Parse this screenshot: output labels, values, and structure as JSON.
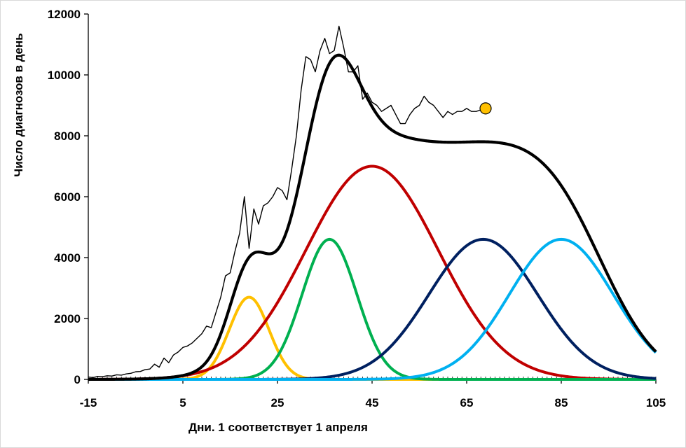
{
  "chart_data": {
    "type": "line",
    "title": "",
    "xlabel": "Дни. 1 соответствует 1 апреля",
    "ylabel": "Число диагнозов в день",
    "xlim": [
      -15,
      105
    ],
    "ylim": [
      0,
      12000
    ],
    "x_ticks": [
      -15,
      5,
      25,
      45,
      65,
      85,
      105
    ],
    "y_ticks": [
      0,
      2000,
      4000,
      6000,
      8000,
      10000,
      12000
    ],
    "gaussians": [
      {
        "name": "wave-yellow",
        "color": "#ffc000",
        "amplitude": 2700,
        "mean": 19,
        "sigma": 4.2
      },
      {
        "name": "wave-red",
        "color": "#c00000",
        "amplitude": 7000,
        "mean": 45,
        "sigma": 14
      },
      {
        "name": "wave-green",
        "color": "#00b050",
        "amplitude": 4600,
        "mean": 36,
        "sigma": 5.8
      },
      {
        "name": "wave-navy",
        "color": "#002060",
        "amplitude": 4600,
        "mean": 68.5,
        "sigma": 11.5
      },
      {
        "name": "wave-cyan",
        "color": "#00b0f0",
        "amplitude": 4600,
        "mean": 85,
        "sigma": 11
      }
    ],
    "sum_series": {
      "name": "model-sum",
      "color": "#000000"
    },
    "observed_series": {
      "name": "observed-daily",
      "color": "#000000",
      "x": [
        -15,
        -14,
        -13,
        -12,
        -11,
        -10,
        -9,
        -8,
        -7,
        -6,
        -5,
        -4,
        -3,
        -2,
        -1,
        0,
        1,
        2,
        3,
        4,
        5,
        6,
        7,
        8,
        9,
        10,
        11,
        12,
        13,
        14,
        15,
        16,
        17,
        18,
        19,
        20,
        21,
        22,
        23,
        24,
        25,
        26,
        27,
        28,
        29,
        30,
        31,
        32,
        33,
        34,
        35,
        36,
        37,
        38,
        39,
        40,
        41,
        42,
        43,
        44,
        45,
        46,
        47,
        48,
        49,
        50,
        51,
        52,
        53,
        54,
        55,
        56,
        57,
        58,
        59,
        60,
        61,
        62,
        63,
        64,
        65,
        66,
        67,
        68,
        69
      ],
      "y": [
        80,
        60,
        100,
        90,
        120,
        110,
        150,
        140,
        180,
        200,
        250,
        260,
        320,
        340,
        500,
        400,
        700,
        550,
        800,
        900,
        1050,
        1100,
        1200,
        1350,
        1500,
        1750,
        1700,
        2200,
        2700,
        3400,
        3500,
        4200,
        4800,
        6000,
        4300,
        5600,
        5100,
        5700,
        5800,
        6000,
        6300,
        6200,
        5900,
        6900,
        8000,
        9500,
        10600,
        10500,
        10100,
        10800,
        11200,
        10700,
        10800,
        11600,
        10900,
        10100,
        10100,
        10300,
        9200,
        9400,
        9100,
        9000,
        8800,
        8900,
        9000,
        8700,
        8400,
        8400,
        8700,
        8900,
        9000,
        9300,
        9100,
        9000,
        8800,
        8600,
        8800,
        8700,
        8800,
        8800,
        8900,
        8800,
        8800,
        8850,
        8900
      ],
      "endpoint_marker": {
        "x": 69,
        "y": 8900,
        "color": "#ffc000"
      }
    }
  }
}
